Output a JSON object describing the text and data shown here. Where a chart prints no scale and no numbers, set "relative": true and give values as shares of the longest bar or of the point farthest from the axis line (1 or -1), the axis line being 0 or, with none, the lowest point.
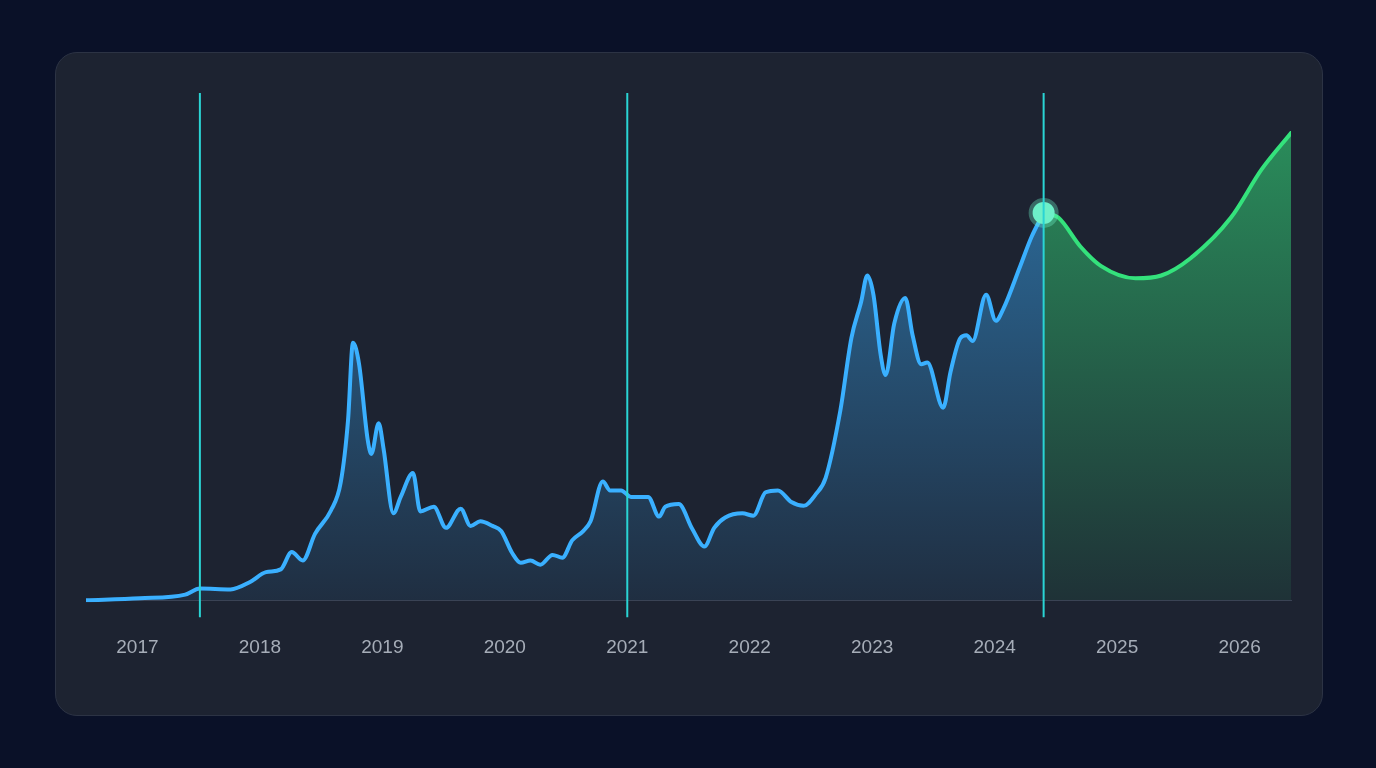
{
  "chart_data": {
    "type": "area",
    "relative": true,
    "xlim": [
      2016.58,
      2026.42
    ],
    "xticks": [
      2017,
      2018,
      2019,
      2020,
      2021,
      2022,
      2023,
      2024,
      2025,
      2026
    ],
    "tick_labels": "x",
    "grid": false,
    "legend": false,
    "marker": "none",
    "line_style": "solid",
    "ref_lines": [
      {
        "axis": "x",
        "value": 2017.51,
        "color": "#2ad4d4"
      },
      {
        "axis": "x",
        "value": 2021.0,
        "color": "#2ad4d4"
      },
      {
        "axis": "x",
        "value": 2024.4,
        "color": "#2ad4d4"
      }
    ],
    "series": [
      {
        "color": "#3ab0ff",
        "x": [
          2016.58,
          2017.02,
          2017.39,
          2017.51,
          2017.76,
          2017.92,
          2018.05,
          2018.17,
          2018.26,
          2018.35,
          2018.45,
          2018.58,
          2018.66,
          2018.72,
          2018.76,
          2018.81,
          2018.88,
          2018.91,
          2018.97,
          2019.01,
          2019.09,
          2019.15,
          2019.25,
          2019.31,
          2019.42,
          2019.52,
          2019.64,
          2019.72,
          2019.8,
          2019.9,
          2019.97,
          2020.06,
          2020.13,
          2020.21,
          2020.29,
          2020.39,
          2020.47,
          2020.55,
          2020.64,
          2020.7,
          2020.8,
          2020.86,
          2020.95,
          2021.03,
          2021.17,
          2021.26,
          2021.31,
          2021.42,
          2021.53,
          2021.63,
          2021.71,
          2021.8,
          2021.94,
          2022.03,
          2022.13,
          2022.23,
          2022.34,
          2022.44,
          2022.54,
          2022.62,
          2022.74,
          2022.83,
          2022.91,
          2022.96,
          2023.01,
          2023.07,
          2023.11,
          2023.18,
          2023.27,
          2023.33,
          2023.4,
          2023.45,
          2023.58,
          2023.64,
          2023.72,
          2023.77,
          2023.82,
          2023.93,
          2024.01,
          2024.07,
          2024.21,
          2024.3,
          2024.4
        ],
        "values": [
          0,
          0.004,
          0.012,
          0.025,
          0.023,
          0.039,
          0.06,
          0.066,
          0.103,
          0.085,
          0.142,
          0.192,
          0.252,
          0.386,
          0.551,
          0.505,
          0.344,
          0.313,
          0.379,
          0.324,
          0.186,
          0.221,
          0.272,
          0.19,
          0.2,
          0.155,
          0.196,
          0.159,
          0.169,
          0.159,
          0.148,
          0.101,
          0.08,
          0.085,
          0.076,
          0.097,
          0.091,
          0.128,
          0.148,
          0.169,
          0.254,
          0.235,
          0.235,
          0.221,
          0.221,
          0.179,
          0.2,
          0.206,
          0.153,
          0.115,
          0.155,
          0.177,
          0.186,
          0.181,
          0.231,
          0.235,
          0.21,
          0.202,
          0.227,
          0.262,
          0.406,
          0.561,
          0.639,
          0.695,
          0.654,
          0.524,
          0.482,
          0.592,
          0.647,
          0.567,
          0.505,
          0.509,
          0.412,
          0.489,
          0.561,
          0.567,
          0.555,
          0.654,
          0.598,
          0.623,
          0.716,
          0.777,
          0.829
        ]
      },
      {
        "color": "#34e27c",
        "x": [
          2024.4,
          2024.52,
          2024.7,
          2024.87,
          2025.15,
          2025.36,
          2025.6,
          2025.93,
          2026.18,
          2026.42
        ],
        "values": [
          0.829,
          0.819,
          0.757,
          0.715,
          0.689,
          0.695,
          0.732,
          0.819,
          0.922,
          1
        ]
      },
      {
        "type": "scatter",
        "marker": "circle",
        "color": "#6ef0c8",
        "x": [
          2024.4
        ],
        "values": [
          0.829
        ]
      }
    ]
  }
}
